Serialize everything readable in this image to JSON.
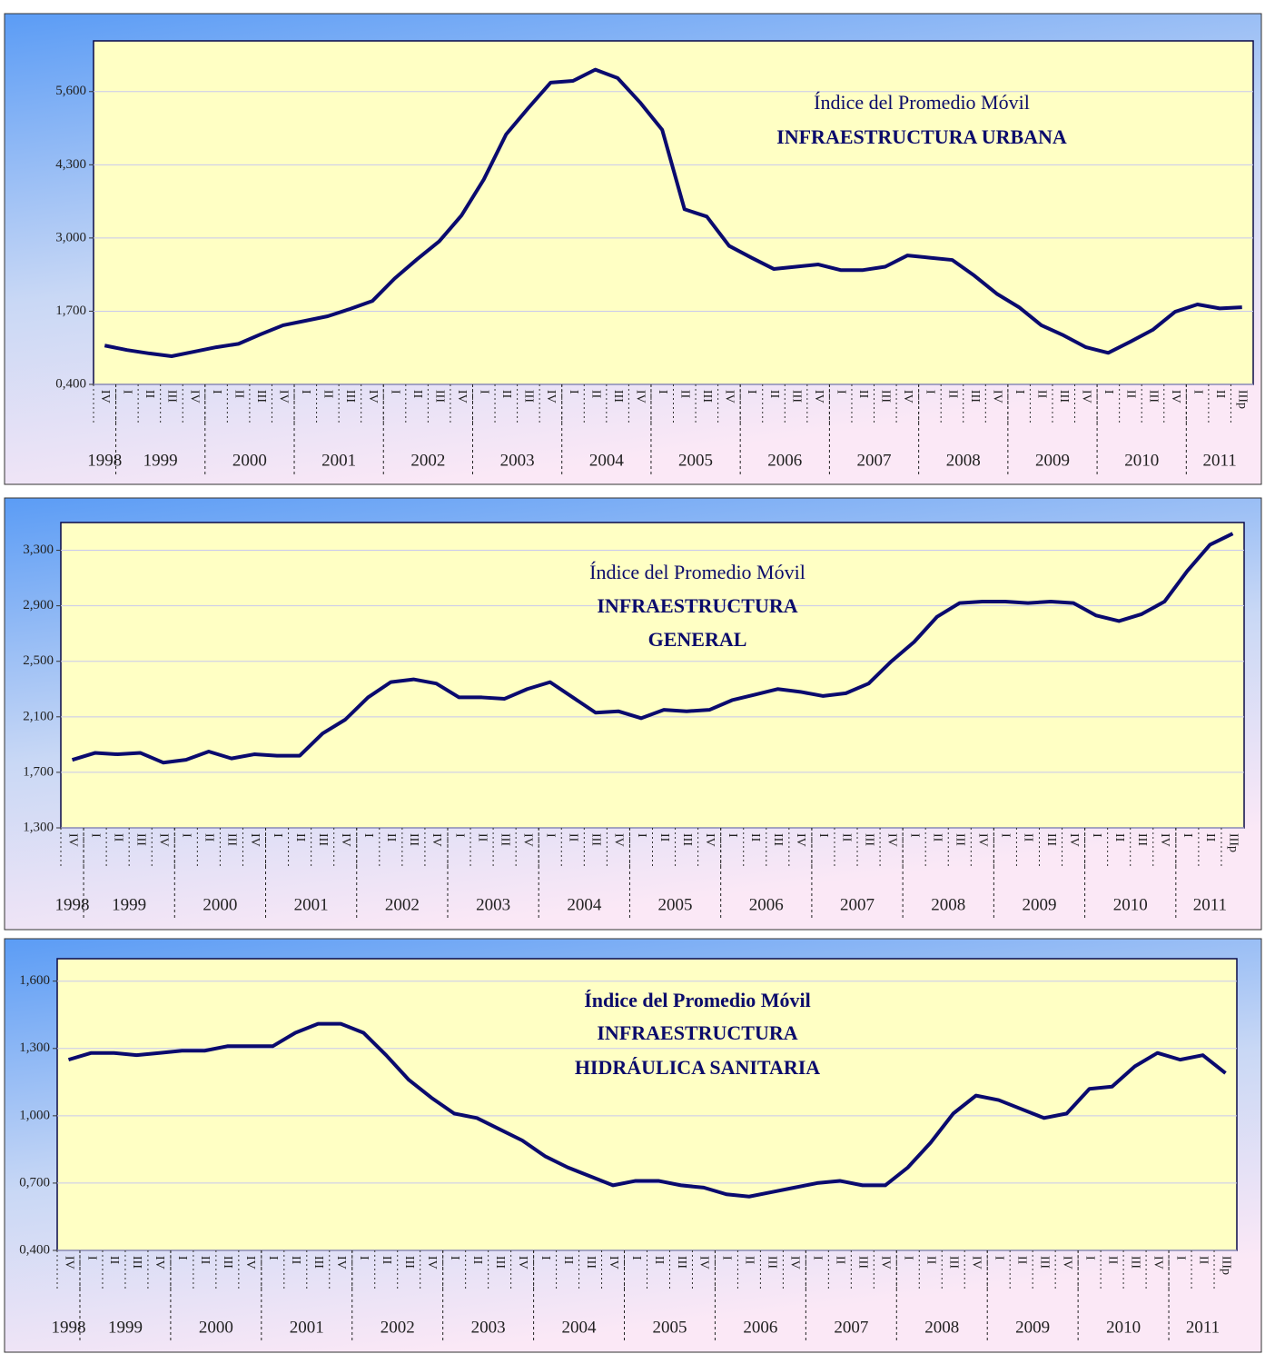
{
  "chart_data": [
    {
      "type": "line",
      "title": "Índice del Promedio Móvil",
      "subtitle": [
        "INFRAESTRUCTURA URBANA"
      ],
      "title_bold": false,
      "categories": [
        "IV",
        "I",
        "II",
        "III",
        "IV",
        "I",
        "II",
        "III",
        "IV",
        "I",
        "II",
        "III",
        "IV",
        "I",
        "II",
        "III",
        "IV",
        "I",
        "II",
        "III",
        "IV",
        "I",
        "II",
        "III",
        "IV",
        "I",
        "II",
        "III",
        "IV",
        "I",
        "II",
        "III",
        "IV",
        "I",
        "II",
        "III",
        "IV",
        "I",
        "II",
        "III",
        "IV",
        "I",
        "II",
        "III",
        "IV",
        "I",
        "II",
        "III",
        "IV",
        "I",
        "II",
        "IIIp"
      ],
      "years": [
        "1998",
        "1999",
        "2000",
        "2001",
        "2002",
        "2003",
        "2004",
        "2005",
        "2006",
        "2007",
        "2008",
        "2009",
        "2010",
        "2011"
      ],
      "values": [
        1090,
        1010,
        950,
        900,
        980,
        1060,
        1120,
        1290,
        1450,
        1530,
        1610,
        1740,
        1880,
        2280,
        2620,
        2940,
        3400,
        4040,
        4840,
        5310,
        5760,
        5790,
        5990,
        5840,
        5410,
        4920,
        3510,
        3380,
        2860,
        2650,
        2450,
        2490,
        2530,
        2430,
        2430,
        2490,
        2690,
        2650,
        2610,
        2330,
        2010,
        1770,
        1450,
        1270,
        1060,
        960,
        1160,
        1370,
        1690,
        1820,
        1750,
        1770
      ],
      "color": "#0a0a6e",
      "ylim": [
        400,
        6500
      ],
      "yticks": [
        {
          "value": 400,
          "label": "0,400"
        },
        {
          "value": 1700,
          "label": "1,700"
        },
        {
          "value": 3000,
          "label": "3,000"
        },
        {
          "value": 4300,
          "label": "4,300"
        },
        {
          "value": 5600,
          "label": "5,600"
        }
      ],
      "grid": true
    },
    {
      "type": "line",
      "title": "Índice del Promedio Móvil",
      "subtitle": [
        "INFRAESTRUCTURA",
        "GENERAL"
      ],
      "title_bold": false,
      "categories": [
        "IV",
        "I",
        "II",
        "III",
        "IV",
        "I",
        "II",
        "III",
        "IV",
        "I",
        "II",
        "III",
        "IV",
        "I",
        "II",
        "III",
        "IV",
        "I",
        "II",
        "III",
        "IV",
        "I",
        "II",
        "III",
        "IV",
        "I",
        "II",
        "III",
        "IV",
        "I",
        "II",
        "III",
        "IV",
        "I",
        "II",
        "III",
        "IV",
        "I",
        "II",
        "III",
        "IV",
        "I",
        "II",
        "III",
        "IV",
        "I",
        "II",
        "III",
        "IV",
        "I",
        "II",
        "IIIp"
      ],
      "years": [
        "1998",
        "1999",
        "2000",
        "2001",
        "2002",
        "2003",
        "2004",
        "2005",
        "2006",
        "2007",
        "2008",
        "2009",
        "2010",
        "2011"
      ],
      "values": [
        1790,
        1840,
        1830,
        1840,
        1770,
        1790,
        1850,
        1800,
        1830,
        1820,
        1820,
        1980,
        2080,
        2240,
        2350,
        2370,
        2340,
        2240,
        2240,
        2230,
        2300,
        2350,
        2240,
        2130,
        2140,
        2090,
        2150,
        2140,
        2150,
        2220,
        2260,
        2300,
        2280,
        2250,
        2270,
        2340,
        2500,
        2640,
        2820,
        2920,
        2930,
        2930,
        2920,
        2930,
        2920,
        2830,
        2790,
        2840,
        2930,
        3150,
        3340,
        3420
      ],
      "color": "#0a0a6e",
      "ylim": [
        1300,
        3500
      ],
      "yticks": [
        {
          "value": 1300,
          "label": "1,300"
        },
        {
          "value": 1700,
          "label": "1,700"
        },
        {
          "value": 2100,
          "label": "2,100"
        },
        {
          "value": 2500,
          "label": "2,500"
        },
        {
          "value": 2900,
          "label": "2,900"
        },
        {
          "value": 3300,
          "label": "3,300"
        }
      ],
      "grid": true
    },
    {
      "type": "line",
      "title": "Índice del Promedio Móvil",
      "subtitle": [
        "INFRAESTRUCTURA",
        "HIDRÁULICA SANITARIA"
      ],
      "title_bold": true,
      "categories": [
        "IV",
        "I",
        "II",
        "III",
        "IV",
        "I",
        "II",
        "III",
        "IV",
        "I",
        "II",
        "III",
        "IV",
        "I",
        "II",
        "III",
        "IV",
        "I",
        "II",
        "III",
        "IV",
        "I",
        "II",
        "III",
        "IV",
        "I",
        "II",
        "III",
        "IV",
        "I",
        "II",
        "III",
        "IV",
        "I",
        "II",
        "III",
        "IV",
        "I",
        "II",
        "III",
        "IV",
        "I",
        "II",
        "III",
        "IV",
        "I",
        "II",
        "III",
        "IV",
        "I",
        "II",
        "IIIp"
      ],
      "years": [
        "1998",
        "1999",
        "2000",
        "2001",
        "2002",
        "2003",
        "2004",
        "2005",
        "2006",
        "2007",
        "2008",
        "2009",
        "2010",
        "2011"
      ],
      "values": [
        1250,
        1280,
        1280,
        1270,
        1280,
        1290,
        1290,
        1310,
        1310,
        1310,
        1370,
        1410,
        1410,
        1370,
        1270,
        1160,
        1080,
        1010,
        990,
        940,
        890,
        820,
        770,
        730,
        690,
        710,
        710,
        690,
        680,
        650,
        640,
        660,
        680,
        700,
        710,
        690,
        690,
        770,
        880,
        1010,
        1090,
        1070,
        1030,
        990,
        1010,
        1120,
        1130,
        1220,
        1280,
        1250,
        1270,
        1190
      ],
      "color": "#0a0a6e",
      "ylim": [
        400,
        1700
      ],
      "yticks": [
        {
          "value": 400,
          "label": "0,400"
        },
        {
          "value": 700,
          "label": "0,700"
        },
        {
          "value": 1000,
          "label": "1,000"
        },
        {
          "value": 1300,
          "label": "1,300"
        },
        {
          "value": 1600,
          "label": "1,600"
        }
      ],
      "grid": true
    }
  ]
}
